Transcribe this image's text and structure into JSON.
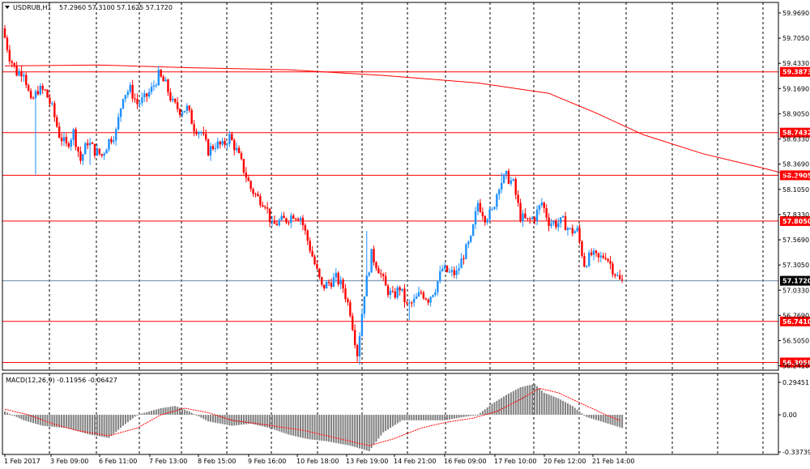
{
  "header": {
    "symbol": "USDRUB,H1",
    "ohlc": "57.2960 57.3100 57.1625 57.1720",
    "menu_icon": "triangle-down-icon"
  },
  "colors": {
    "bull": "#1e90ff",
    "bear": "#ff0000",
    "level_line": "#ff0000",
    "ma_line": "#ff0000",
    "current_line": "#6a8aa8",
    "macd_hist": "#808080",
    "macd_signal": "#ff0000",
    "grid": "#000000"
  },
  "chart_data": [
    {
      "type": "candlestick",
      "ylim": [
        56.241,
        59.969
      ],
      "y_ticks": [
        "59.9690",
        "59.7050",
        "59.4330",
        "59.1690",
        "58.9050",
        "58.6330",
        "58.3690",
        "58.1050",
        "57.8330",
        "57.5690",
        "57.3050",
        "57.0330",
        "56.7690",
        "56.5050",
        "56.2410"
      ],
      "x_tick_labels": [
        "1 Feb 2017",
        "3 Feb 09:00",
        "6 Feb 11:00",
        "7 Feb 13:00",
        "8 Feb 15:00",
        "9 Feb 16:00",
        "10 Feb 18:00",
        "13 Feb 19:00",
        "14 Feb 21:00",
        "16 Feb 09:00",
        "17 Feb 10:00",
        "20 Feb 12:00",
        "21 Feb 14:00"
      ],
      "levels": [
        {
          "value": 59.3873,
          "label": "59.3873"
        },
        {
          "value": 58.7432,
          "label": "58.7432"
        },
        {
          "value": 58.2905,
          "label": "58.2905"
        },
        {
          "value": 57.805,
          "label": "57.8050"
        },
        {
          "value": 56.741,
          "label": "56.7410"
        },
        {
          "value": 56.3058,
          "label": "56.3058"
        }
      ],
      "current_price": {
        "value": 57.172,
        "label": "57.1720"
      },
      "ma_points": [
        [
          0,
          59.45
        ],
        [
          40,
          59.46
        ],
        [
          80,
          59.43
        ],
        [
          120,
          59.41
        ],
        [
          160,
          59.35
        ],
        [
          200,
          59.27
        ],
        [
          230,
          59.16
        ],
        [
          250,
          58.95
        ],
        [
          270,
          58.72
        ],
        [
          295,
          58.52
        ],
        [
          320,
          58.37
        ],
        [
          345,
          58.21
        ]
      ],
      "anchors": [
        [
          0,
          59.85
        ],
        [
          3,
          59.55
        ],
        [
          6,
          59.38
        ],
        [
          9,
          59.4
        ],
        [
          12,
          59.05
        ],
        [
          15,
          59.2
        ],
        [
          18,
          59.18
        ],
        [
          21,
          59.0
        ],
        [
          24,
          58.72
        ],
        [
          27,
          58.6
        ],
        [
          30,
          58.75
        ],
        [
          33,
          58.45
        ],
        [
          36,
          58.65
        ],
        [
          39,
          58.55
        ],
        [
          42,
          58.5
        ],
        [
          45,
          58.66
        ],
        [
          48,
          58.75
        ],
        [
          51,
          59.15
        ],
        [
          54,
          59.2
        ],
        [
          57,
          59.05
        ],
        [
          60,
          59.1
        ],
        [
          63,
          59.2
        ],
        [
          66,
          59.35
        ],
        [
          69,
          59.25
        ],
        [
          72,
          59.05
        ],
        [
          75,
          58.98
        ],
        [
          78,
          59.0
        ],
        [
          81,
          58.8
        ],
        [
          84,
          58.75
        ],
        [
          87,
          58.55
        ],
        [
          90,
          58.62
        ],
        [
          93,
          58.6
        ],
        [
          96,
          58.7
        ],
        [
          99,
          58.55
        ],
        [
          102,
          58.35
        ],
        [
          105,
          58.15
        ],
        [
          108,
          58.05
        ],
        [
          111,
          58.0
        ],
        [
          114,
          57.75
        ],
        [
          117,
          57.8
        ],
        [
          120,
          57.82
        ],
        [
          123,
          57.88
        ],
        [
          126,
          57.85
        ],
        [
          129,
          57.6
        ],
        [
          132,
          57.35
        ],
        [
          135,
          57.1
        ],
        [
          138,
          57.15
        ],
        [
          141,
          57.2
        ],
        [
          144,
          57.1
        ],
        [
          147,
          56.85
        ],
        [
          150,
          56.4
        ],
        [
          153,
          57.05
        ],
        [
          156,
          57.45
        ],
        [
          159,
          57.3
        ],
        [
          162,
          57.1
        ],
        [
          165,
          57.0
        ],
        [
          168,
          57.1
        ],
        [
          171,
          56.9
        ],
        [
          174,
          56.95
        ],
        [
          177,
          57.05
        ],
        [
          180,
          56.98
        ],
        [
          183,
          57.1
        ],
        [
          186,
          57.3
        ],
        [
          189,
          57.25
        ],
        [
          192,
          57.25
        ],
        [
          195,
          57.45
        ],
        [
          198,
          57.6
        ],
        [
          201,
          58.0
        ],
        [
          204,
          57.85
        ],
        [
          207,
          57.9
        ],
        [
          210,
          58.2
        ],
        [
          213,
          58.28
        ],
        [
          216,
          58.2
        ],
        [
          219,
          57.85
        ],
        [
          222,
          57.8
        ],
        [
          225,
          57.85
        ],
        [
          228,
          58.0
        ],
        [
          231,
          57.8
        ],
        [
          234,
          57.78
        ],
        [
          237,
          57.8
        ],
        [
          240,
          57.7
        ],
        [
          243,
          57.7
        ],
        [
          246,
          57.35
        ],
        [
          249,
          57.45
        ],
        [
          252,
          57.4
        ],
        [
          255,
          57.45
        ],
        [
          258,
          57.3
        ],
        [
          261,
          57.17
        ]
      ],
      "spikes": [
        [
          13,
          58.3
        ],
        [
          36,
          58.4
        ],
        [
          150,
          56.28
        ],
        [
          153,
          57.7
        ],
        [
          171,
          56.75
        ],
        [
          210,
          58.32
        ]
      ]
    },
    {
      "type": "macd-histogram",
      "label": "MACD(12,26,9) -0.11956 -0.06427",
      "ylim": [
        -0.33739,
        0.29451
      ],
      "y_ticks": [
        "0.29451",
        "0.00",
        "-0.33739"
      ],
      "hist_anchors": [
        [
          0,
          0.03
        ],
        [
          8,
          -0.05
        ],
        [
          16,
          -0.1
        ],
        [
          26,
          -0.12
        ],
        [
          36,
          -0.18
        ],
        [
          44,
          -0.21
        ],
        [
          50,
          -0.1
        ],
        [
          56,
          0.0
        ],
        [
          66,
          0.06
        ],
        [
          72,
          0.08
        ],
        [
          78,
          0.03
        ],
        [
          86,
          -0.06
        ],
        [
          96,
          -0.1
        ],
        [
          104,
          -0.08
        ],
        [
          112,
          -0.12
        ],
        [
          120,
          -0.18
        ],
        [
          128,
          -0.22
        ],
        [
          136,
          -0.24
        ],
        [
          146,
          -0.28
        ],
        [
          154,
          -0.33
        ],
        [
          160,
          -0.16
        ],
        [
          168,
          -0.05
        ],
        [
          176,
          -0.05
        ],
        [
          186,
          -0.05
        ],
        [
          194,
          -0.02
        ],
        [
          200,
          0.0
        ],
        [
          206,
          0.1
        ],
        [
          212,
          0.18
        ],
        [
          218,
          0.25
        ],
        [
          224,
          0.28
        ],
        [
          228,
          0.2
        ],
        [
          234,
          0.15
        ],
        [
          240,
          0.08
        ],
        [
          246,
          -0.02
        ],
        [
          252,
          -0.06
        ],
        [
          258,
          -0.1
        ],
        [
          261,
          -0.12
        ]
      ],
      "signal_anchors": [
        [
          0,
          0.05
        ],
        [
          10,
          0.0
        ],
        [
          20,
          -0.08
        ],
        [
          30,
          -0.14
        ],
        [
          44,
          -0.19
        ],
        [
          56,
          -0.12
        ],
        [
          66,
          0.0
        ],
        [
          76,
          0.06
        ],
        [
          86,
          0.02
        ],
        [
          96,
          -0.05
        ],
        [
          110,
          -0.09
        ],
        [
          126,
          -0.14
        ],
        [
          140,
          -0.21
        ],
        [
          154,
          -0.28
        ],
        [
          164,
          -0.22
        ],
        [
          176,
          -0.12
        ],
        [
          186,
          -0.07
        ],
        [
          198,
          -0.03
        ],
        [
          208,
          0.03
        ],
        [
          218,
          0.14
        ],
        [
          226,
          0.24
        ],
        [
          234,
          0.2
        ],
        [
          244,
          0.1
        ],
        [
          254,
          0.0
        ],
        [
          261,
          -0.06
        ]
      ]
    }
  ]
}
